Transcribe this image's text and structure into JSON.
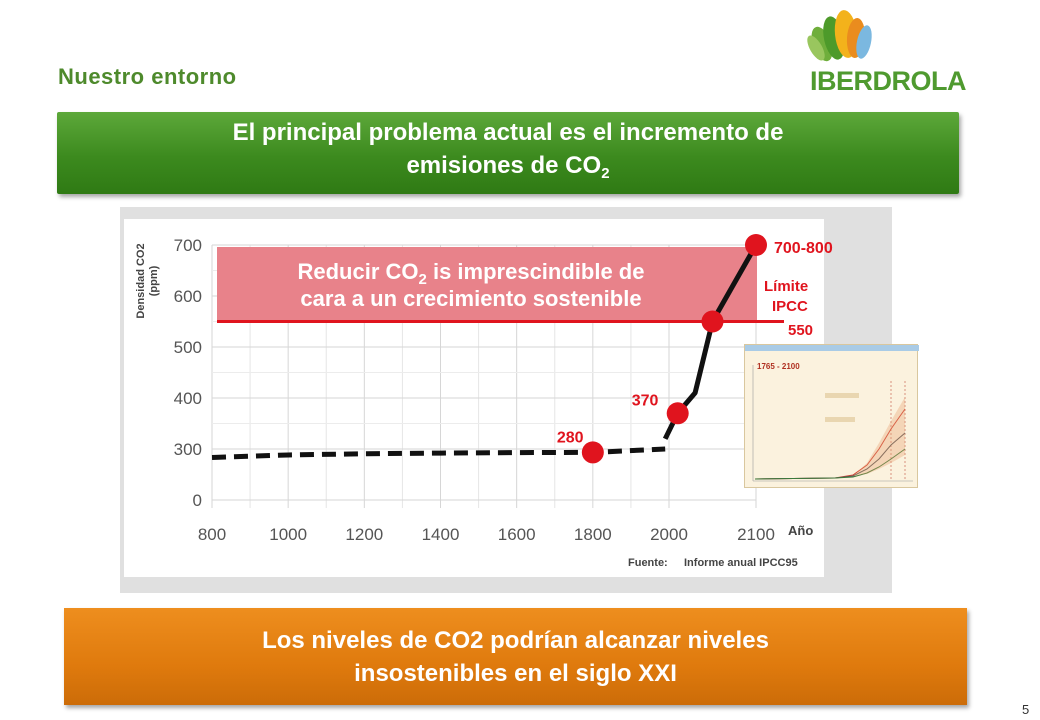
{
  "header": {
    "section_title": "Nuestro entorno",
    "logo_text": "IBERDROLA"
  },
  "banner_top": {
    "line1": "El principal problema actual es el incremento de",
    "line2_prefix": "emisiones de CO",
    "line2_sub": "2"
  },
  "chart_data": {
    "type": "line",
    "ylabel": "Densidad CO2 (ppm)",
    "xlabel": "Año",
    "x_ticks": [
      "800",
      "1000",
      "1200",
      "1400",
      "1600",
      "1800",
      "2000",
      "2100"
    ],
    "y_ticks": [
      "0",
      "300",
      "400",
      "500",
      "600",
      "700"
    ],
    "series": [
      {
        "style": "dashed",
        "x": [
          800,
          1000,
          1200,
          1400,
          1600,
          1800,
          1990
        ],
        "y": [
          250,
          265,
          272,
          276,
          279,
          280,
          300
        ]
      },
      {
        "style": "solid",
        "x": [
          1990,
          2010,
          2030,
          2050,
          2070,
          2100
        ],
        "y": [
          320,
          370,
          410,
          550,
          610,
          700
        ]
      }
    ],
    "markers": [
      {
        "x": 1800,
        "y": 280,
        "label": "280"
      },
      {
        "x": 2010,
        "y": 370,
        "label": "370"
      },
      {
        "x": 2050,
        "y": 550,
        "label": ""
      },
      {
        "x": 2100,
        "y": 700,
        "label": "700-800"
      }
    ],
    "threshold": {
      "y": 550,
      "label_line1": "Límite",
      "label_line2": "IPCC",
      "label_value": "550"
    },
    "highlight_text_line1_prefix": "Reducir CO",
    "highlight_text_line1_sub": "2",
    "highlight_text_line1_suffix": " is imprescindible de",
    "highlight_text_line2": "cara a un crecimiento sostenible",
    "source_label": "Fuente:",
    "source_value": "Informe anual IPCC95",
    "inset_label": "1765 - 2100",
    "colors": {
      "marker": "#e0141e",
      "threshold": "#e0141e",
      "highlight": "#e8828a",
      "line": "#111111",
      "axis_text": "#555555"
    }
  },
  "banner_bottom": {
    "line1": "Los niveles de CO2 podrían alcanzar niveles",
    "line2": "insostenibles en el siglo XXI"
  },
  "footer": {
    "page_number": "5"
  }
}
